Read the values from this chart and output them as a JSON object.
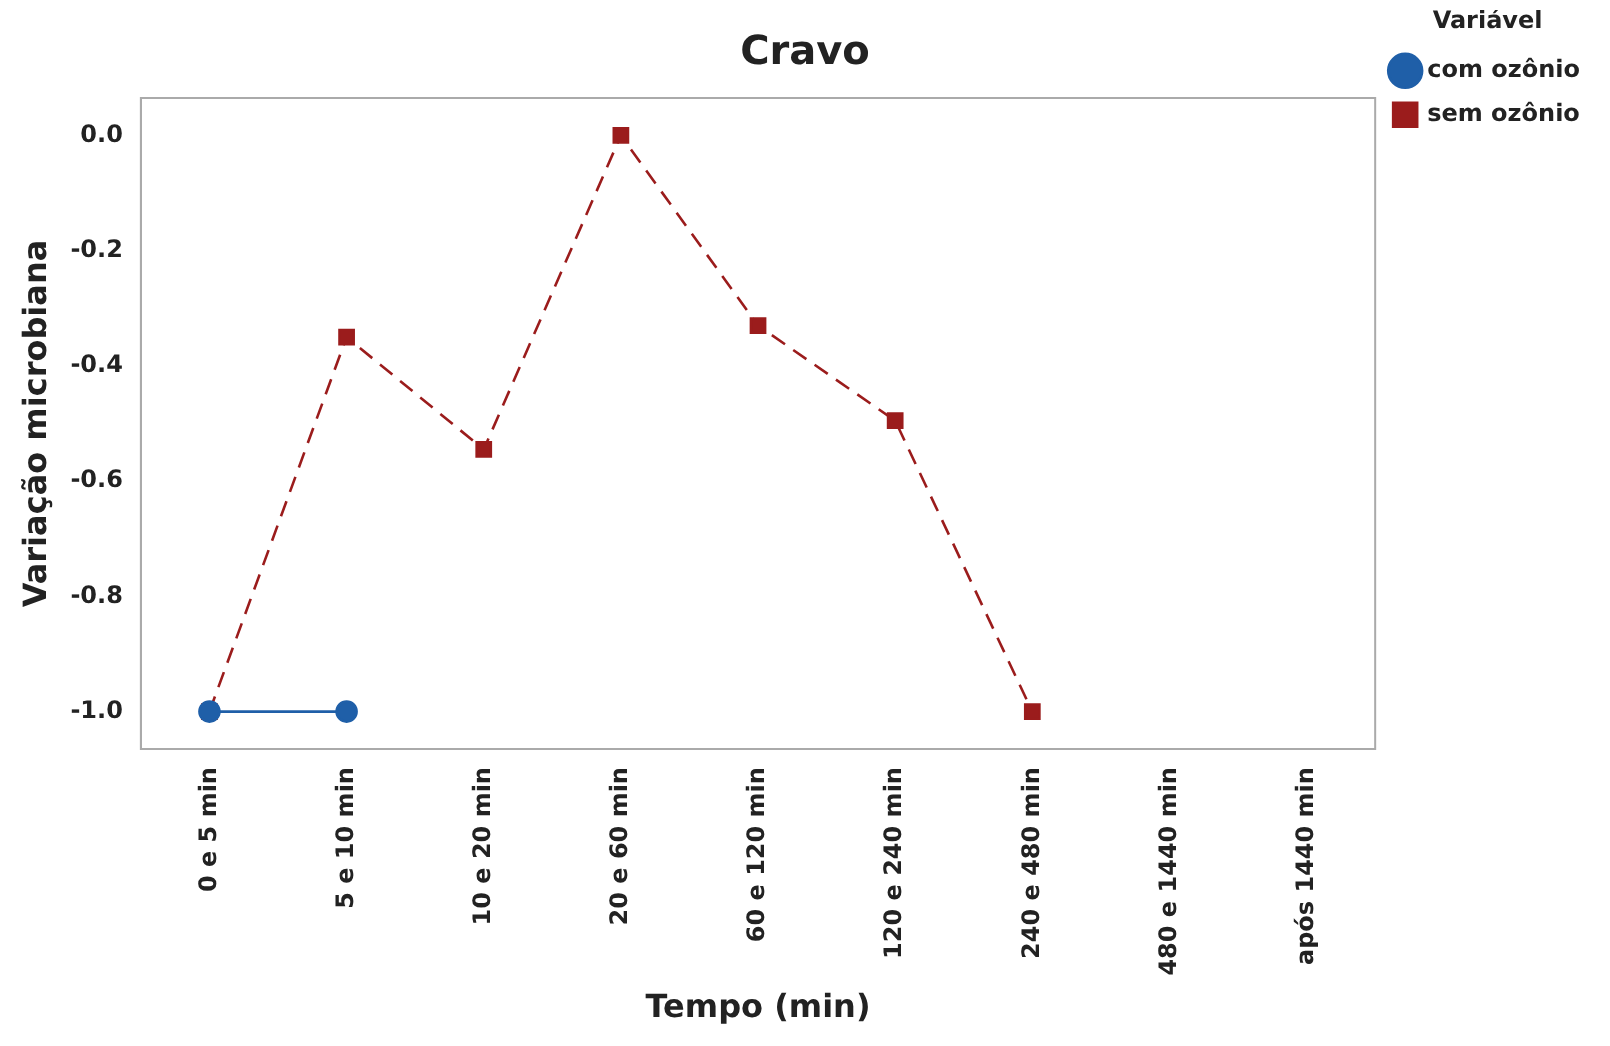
{
  "chart_data": {
    "type": "line",
    "title": "Cravo",
    "xlabel": "Tempo (min)",
    "ylabel": "Variação microbiana",
    "legend_title": "Variável",
    "categories": [
      "0 e 5 min",
      "5 e 10 min",
      "10 e 20 min",
      "20 e 60 min",
      "60 e 120 min",
      "120 e 240 min",
      "240 e 480 min",
      "480 e 1440 min",
      "após 1440 min"
    ],
    "series": [
      {
        "name": "com ozônio",
        "color": "#1f5fa8",
        "marker": "circle",
        "line_style": "solid",
        "values": [
          -1.0,
          -1.0,
          null,
          null,
          null,
          null,
          null,
          null,
          null
        ]
      },
      {
        "name": "sem ozônio",
        "color": "#9b1c1c",
        "marker": "square",
        "line_style": "dashed",
        "values": [
          -1.0,
          -0.35,
          -0.545,
          0.0,
          -0.33,
          -0.495,
          -1.0,
          null,
          null
        ]
      }
    ],
    "ylim": [
      -1.065,
      0.065
    ],
    "yticks": [
      {
        "value": 0,
        "label": "0.0"
      },
      {
        "value": -0.2,
        "label": "-0.2"
      },
      {
        "value": -0.4,
        "label": "-0.4"
      },
      {
        "value": -0.6,
        "label": "-0.6"
      },
      {
        "value": -0.8,
        "label": "-0.8"
      },
      {
        "value": -1,
        "label": "-1.0"
      }
    ],
    "grid": false,
    "legend": "right"
  }
}
